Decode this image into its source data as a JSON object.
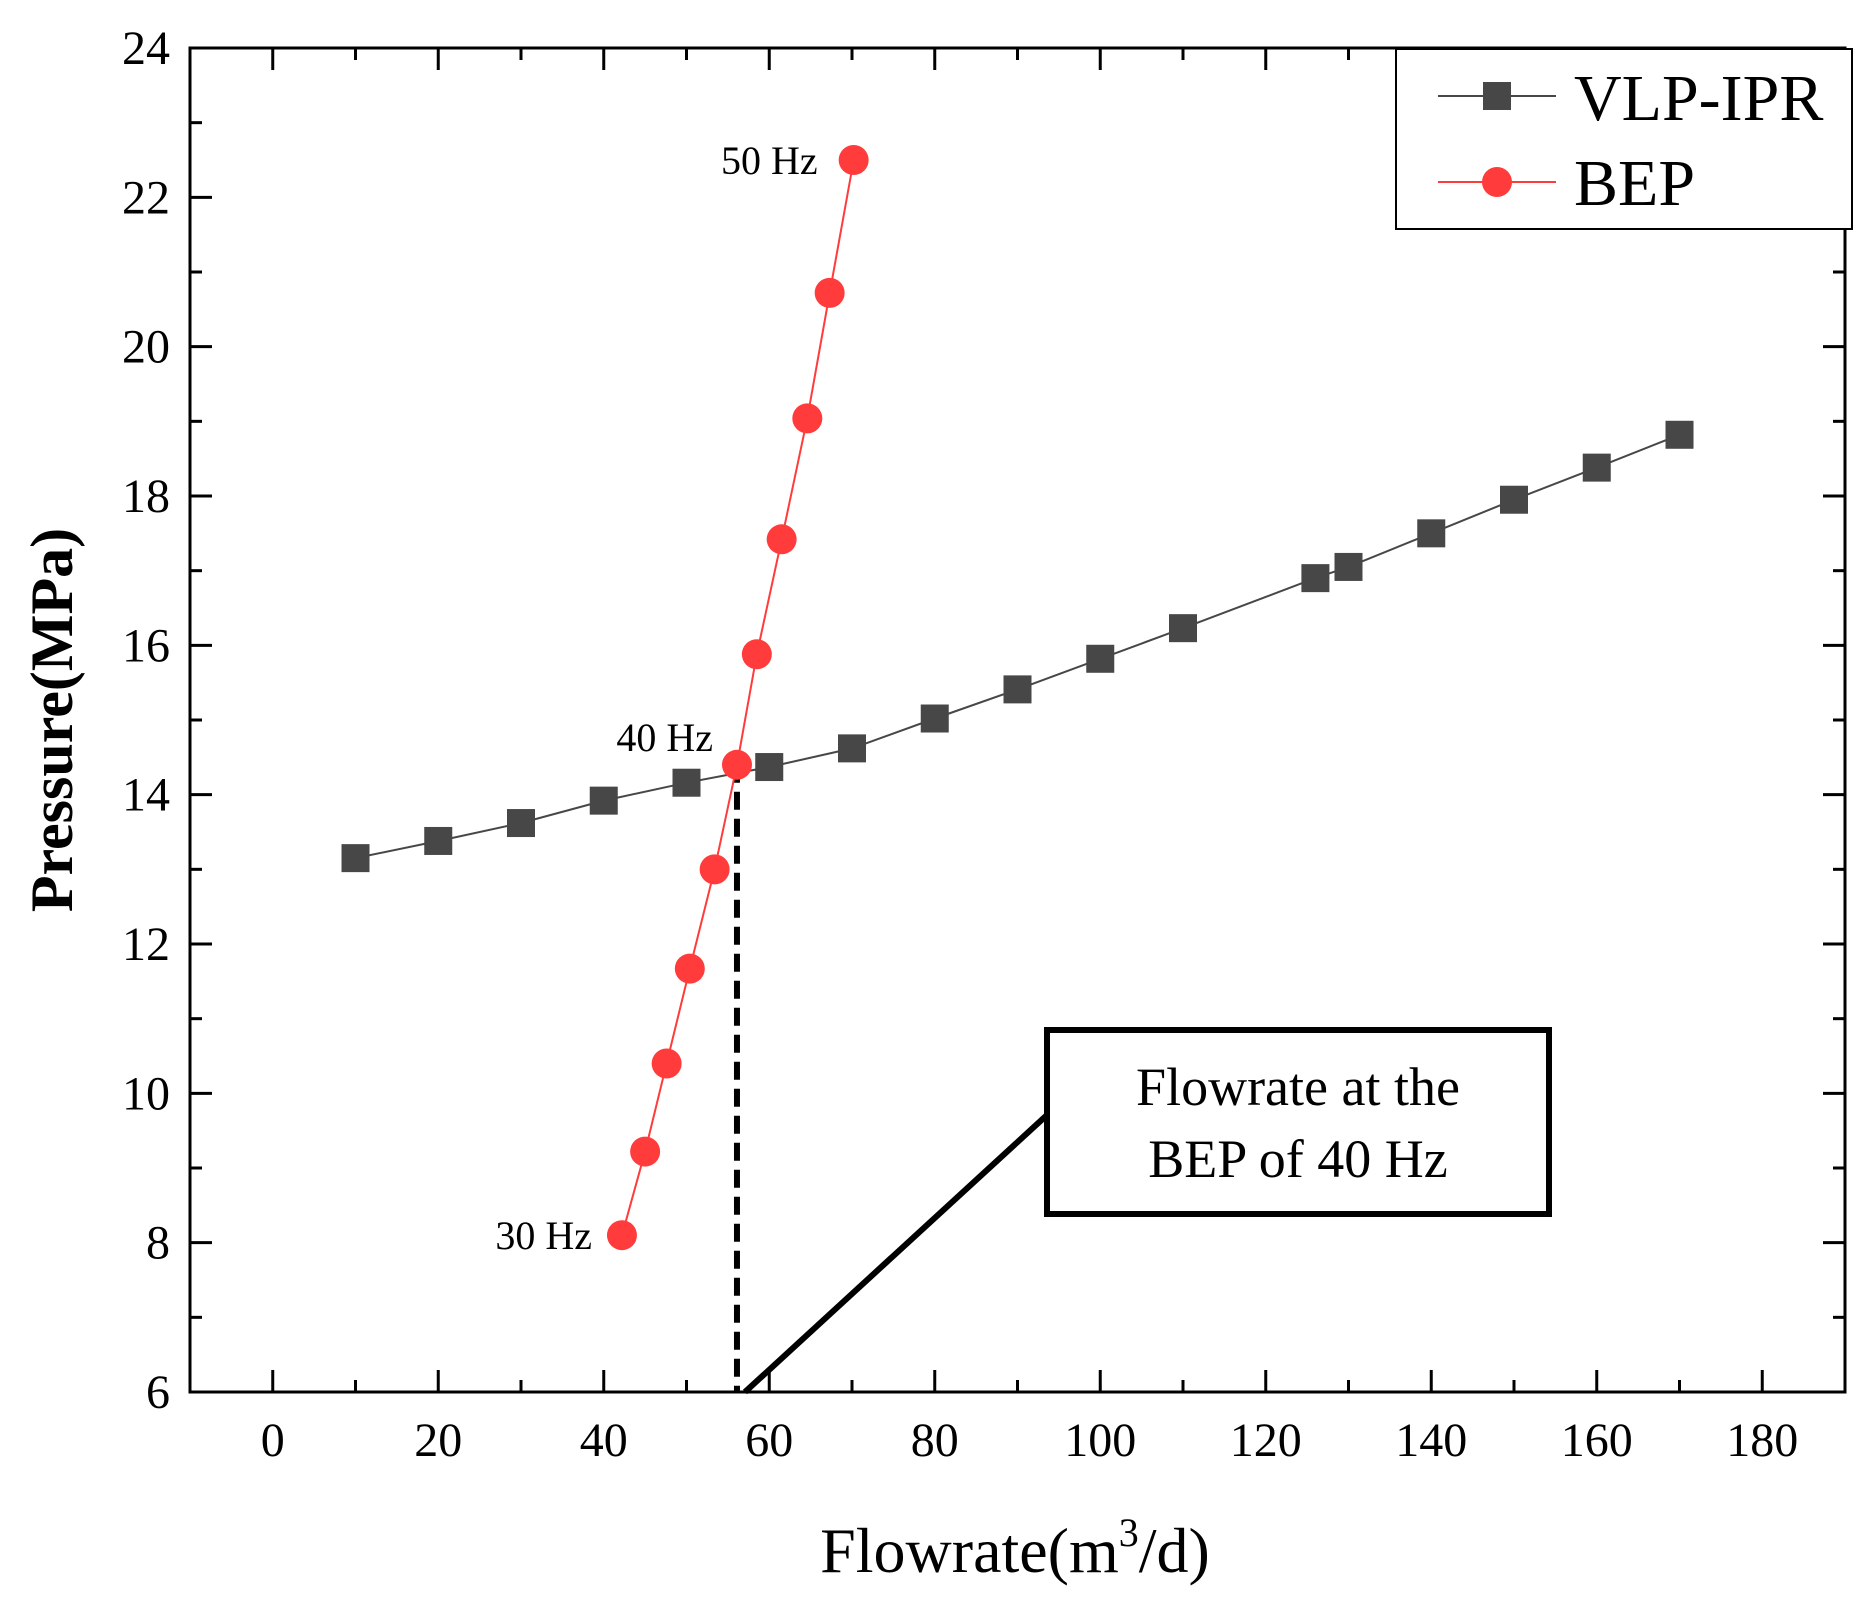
{
  "chart_data": {
    "type": "line",
    "title": "",
    "xlabel": "Flowrate(m",
    "xlabel_superscript": "3",
    "xlabel_suffix": "/d)",
    "ylabel": "Pressure(MPa)",
    "xlim": [
      -10,
      190
    ],
    "ylim": [
      6,
      24
    ],
    "xticks": [
      0,
      20,
      40,
      60,
      80,
      100,
      120,
      140,
      160,
      180
    ],
    "yticks": [
      6,
      8,
      10,
      12,
      14,
      16,
      18,
      20,
      22,
      24
    ],
    "legend_position": "top-right",
    "series": [
      {
        "name": "VLP-IPR",
        "color": "#474747",
        "marker": "square",
        "x": [
          10,
          20,
          30,
          40,
          50,
          60,
          70,
          80,
          90,
          100,
          110,
          126,
          130,
          140,
          150,
          160,
          170
        ],
        "y": [
          13.15,
          13.38,
          13.62,
          13.92,
          14.16,
          14.37,
          14.62,
          15.02,
          15.41,
          15.82,
          16.23,
          16.9,
          17.05,
          17.5,
          17.95,
          18.38,
          18.82
        ]
      },
      {
        "name": "BEP",
        "color": "#ff3b3b",
        "marker": "circle",
        "x": [
          42.2,
          45,
          47.6,
          50.4,
          53.4,
          58.5,
          56.1,
          61.5,
          64.6,
          67.3,
          70.2
        ],
        "y": [
          8.1,
          9.22,
          10.4,
          11.67,
          13.0,
          15.88,
          14.4,
          17.42,
          19.04,
          20.72,
          22.5
        ],
        "order_note": "points sorted by pressure in drawing"
      }
    ],
    "annotations": [
      {
        "text": "50 Hz",
        "x": 70.2,
        "y": 22.5
      },
      {
        "text": "40 Hz",
        "x": 56.1,
        "y": 14.4
      },
      {
        "text": "30 Hz",
        "x": 42.2,
        "y": 8.1
      }
    ],
    "callout": {
      "line1": "Flowrate at the",
      "line2": "BEP of 40 Hz",
      "reference_x": 56.1,
      "reference_y": 14.4
    }
  }
}
